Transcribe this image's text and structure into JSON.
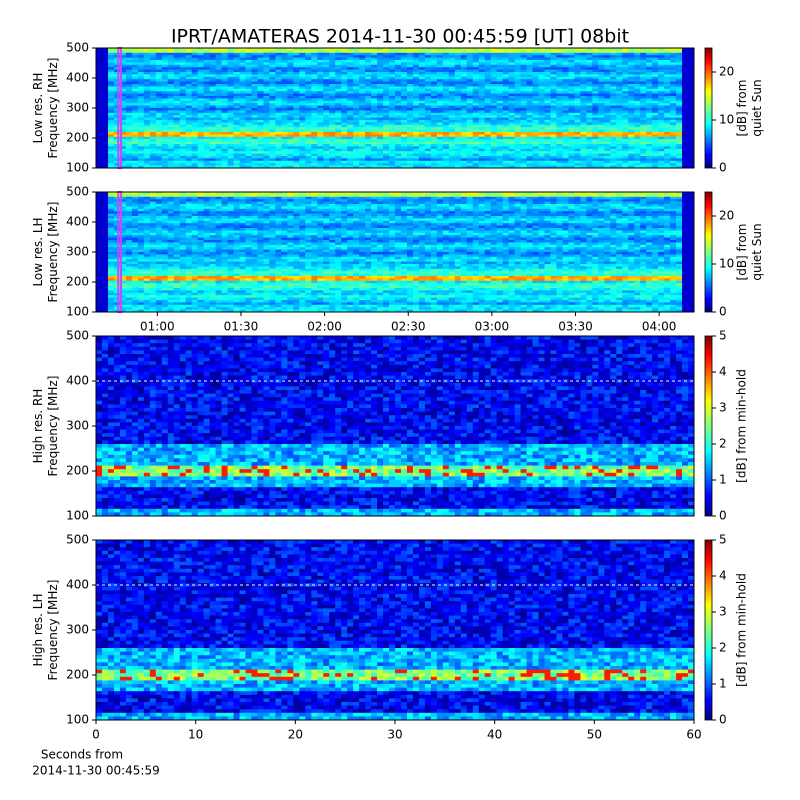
{
  "title": "IPRT/AMATERAS 2014-11-30 00:45:59 [UT]   08bit",
  "chart_data": [
    {
      "type": "spectrogram",
      "resolution": "low",
      "colormap": "jet",
      "ylabel": [
        "Low res. RH",
        "Frequency [MHz]"
      ],
      "ylim": [
        100,
        500
      ],
      "yticks": [
        100,
        200,
        300,
        400,
        500
      ],
      "xlim": [
        38,
        252.5
      ],
      "highlight": {
        "xrange": [
          46,
          47
        ],
        "color": "#cc44ff"
      },
      "colorbar": {
        "label": [
          "[dB] from",
          "quiet Sun"
        ],
        "lim": [
          0,
          25
        ],
        "ticks": [
          0,
          10,
          20
        ]
      }
    },
    {
      "type": "spectrogram",
      "resolution": "low",
      "colormap": "jet",
      "ylabel": [
        "Low res. LH",
        "Frequency [MHz]"
      ],
      "ylim": [
        100,
        500
      ],
      "yticks": [
        100,
        200,
        300,
        400,
        500
      ],
      "xlim": [
        38,
        252.5
      ],
      "xticks": [
        {
          "value": 60,
          "label": "01:00"
        },
        {
          "value": 90,
          "label": "01:30"
        },
        {
          "value": 120,
          "label": "02:00"
        },
        {
          "value": 150,
          "label": "02:30"
        },
        {
          "value": 180,
          "label": "03:00"
        },
        {
          "value": 210,
          "label": "03:30"
        },
        {
          "value": 240,
          "label": "04:00"
        }
      ],
      "highlight": {
        "xrange": [
          46,
          47
        ],
        "color": "#cc44ff"
      },
      "colorbar": {
        "label": [
          "[dB] from",
          "quiet Sun"
        ],
        "lim": [
          0,
          25
        ],
        "ticks": [
          0,
          10,
          20
        ]
      }
    },
    {
      "type": "spectrogram",
      "resolution": "high",
      "colormap": "jet",
      "ylabel": [
        "High res. RH",
        "Frequency [MHz]"
      ],
      "ylim": [
        100,
        500
      ],
      "yticks": [
        100,
        200,
        300,
        400,
        500
      ],
      "xlim": [
        0,
        60
      ],
      "colorbar": {
        "label": [
          "[dB] from min-hold"
        ],
        "lim": [
          0,
          5
        ],
        "ticks": [
          0,
          1,
          2,
          3,
          4,
          5
        ]
      }
    },
    {
      "type": "spectrogram",
      "resolution": "high",
      "colormap": "jet",
      "ylabel": [
        "High res. LH",
        "Frequency [MHz]"
      ],
      "ylim": [
        100,
        500
      ],
      "yticks": [
        100,
        200,
        300,
        400,
        500
      ],
      "xlim": [
        0,
        60
      ],
      "xticks": [
        0,
        10,
        20,
        30,
        40,
        50,
        60
      ],
      "xlabel": [
        "Seconds from",
        "2014-11-30 00:45:59"
      ],
      "colorbar": {
        "label": [
          "[dB] from min-hold"
        ],
        "lim": [
          0,
          5
        ],
        "ticks": [
          0,
          1,
          2,
          3,
          4,
          5
        ]
      }
    }
  ]
}
